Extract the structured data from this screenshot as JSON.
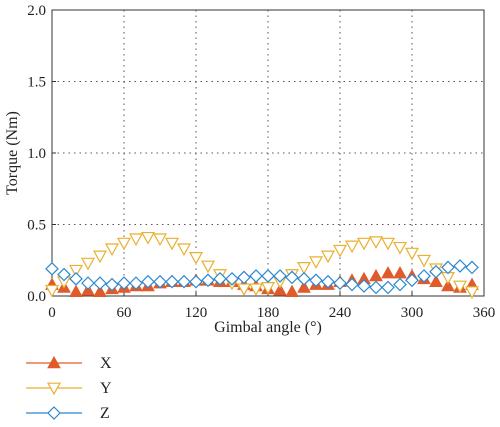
{
  "chart_data": {
    "type": "scatter",
    "xlabel": "Gimbal angle (°)",
    "ylabel": "Torque (Nm)",
    "xlim": [
      0,
      360
    ],
    "ylim": [
      0,
      2.0
    ],
    "xticks": [
      0,
      60,
      120,
      180,
      240,
      300,
      360
    ],
    "xtick_labels": [
      "0",
      "60",
      "120",
      "180",
      "240",
      "300",
      "360"
    ],
    "yticks": [
      0,
      0.5,
      1.0,
      1.5,
      2.0
    ],
    "ytick_labels": [
      "0.0",
      "0.5",
      "1.0",
      "1.5",
      "2.0"
    ],
    "grid": true,
    "legend_position": "bottom-left",
    "series": [
      {
        "name": "X",
        "marker": "triangle-up",
        "color": "#e05a2a",
        "x": [
          0,
          10,
          20,
          30,
          40,
          50,
          60,
          70,
          80,
          90,
          100,
          110,
          120,
          130,
          140,
          150,
          160,
          170,
          180,
          190,
          200,
          210,
          220,
          230,
          240,
          250,
          260,
          270,
          280,
          290,
          300,
          310,
          320,
          330,
          340,
          350
        ],
        "y": [
          0.08,
          0.06,
          0.03,
          0.04,
          0.03,
          0.05,
          0.06,
          0.07,
          0.07,
          0.09,
          0.1,
          0.1,
          0.11,
          0.11,
          0.1,
          0.1,
          0.08,
          0.07,
          0.05,
          0.04,
          0.03,
          0.06,
          0.08,
          0.08,
          0.1,
          0.11,
          0.12,
          0.14,
          0.16,
          0.16,
          0.14,
          0.12,
          0.1,
          0.07,
          0.06,
          0.08
        ]
      },
      {
        "name": "Y",
        "marker": "triangle-down",
        "color": "#e8b030",
        "x": [
          0,
          10,
          20,
          30,
          40,
          50,
          60,
          70,
          80,
          90,
          100,
          110,
          120,
          130,
          140,
          150,
          160,
          170,
          180,
          190,
          200,
          210,
          220,
          230,
          240,
          250,
          260,
          270,
          280,
          290,
          300,
          310,
          320,
          330,
          340,
          350
        ],
        "y": [
          0.04,
          0.1,
          0.18,
          0.23,
          0.28,
          0.33,
          0.37,
          0.4,
          0.41,
          0.4,
          0.37,
          0.33,
          0.27,
          0.21,
          0.15,
          0.09,
          0.05,
          0.05,
          0.06,
          0.1,
          0.15,
          0.2,
          0.24,
          0.28,
          0.32,
          0.35,
          0.37,
          0.38,
          0.37,
          0.34,
          0.3,
          0.25,
          0.19,
          0.13,
          0.07,
          0.03
        ]
      },
      {
        "name": "Z",
        "marker": "diamond",
        "color": "#2c88d0",
        "x": [
          0,
          10,
          20,
          30,
          40,
          50,
          60,
          70,
          80,
          90,
          100,
          110,
          120,
          130,
          140,
          150,
          160,
          170,
          180,
          190,
          200,
          210,
          220,
          230,
          240,
          250,
          260,
          270,
          280,
          290,
          300,
          310,
          320,
          330,
          340,
          350
        ],
        "y": [
          0.19,
          0.15,
          0.12,
          0.09,
          0.09,
          0.08,
          0.09,
          0.09,
          0.1,
          0.1,
          0.1,
          0.1,
          0.1,
          0.11,
          0.12,
          0.12,
          0.13,
          0.14,
          0.14,
          0.14,
          0.13,
          0.12,
          0.11,
          0.1,
          0.09,
          0.08,
          0.07,
          0.06,
          0.06,
          0.08,
          0.11,
          0.14,
          0.17,
          0.2,
          0.21,
          0.2
        ]
      }
    ]
  }
}
